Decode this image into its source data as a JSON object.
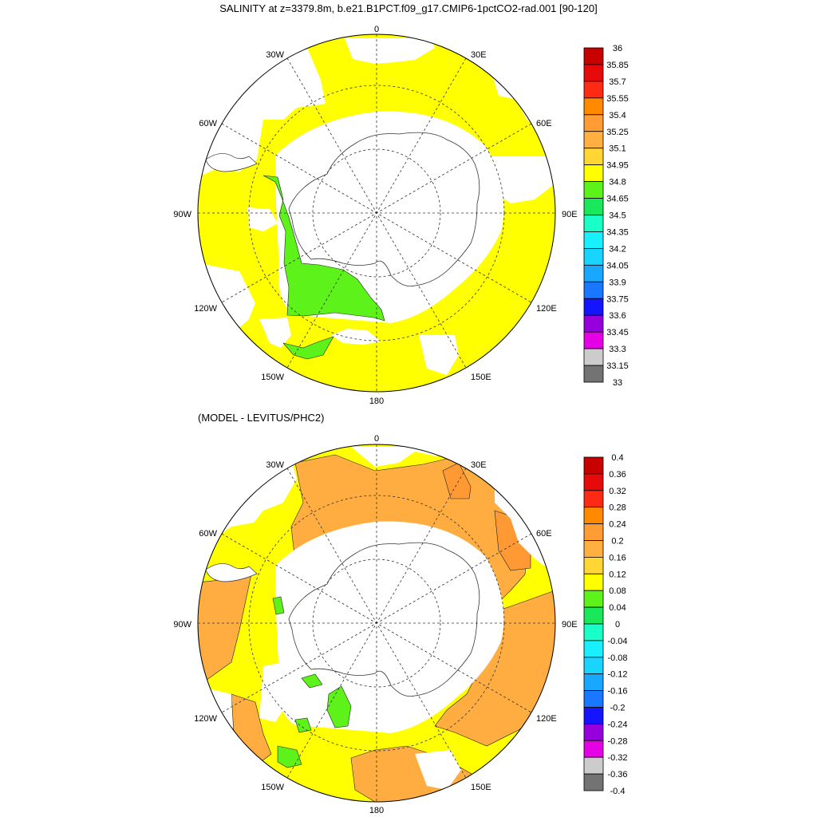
{
  "title": "SALINITY at z=3379.8m, b.e21.B1PCT.f09_g17.CMIP6-1pctCO2-rad.001 [90-120]",
  "subtitle": "(MODEL - LEVITUS/PHC2)",
  "longitude_labels": {
    "top": "0",
    "bottom": "180",
    "left": "90W",
    "right": "90E",
    "upper_left_1": "30W",
    "upper_left_2": "60W",
    "upper_right_1": "30E",
    "upper_right_2": "60E",
    "lower_left_1": "120W",
    "lower_left_2": "150W",
    "lower_right_1": "120E",
    "lower_right_2": "150E"
  },
  "colors": {
    "yellow": "#ffff00",
    "green": "#5cf21a",
    "gold": "#ffd633",
    "light_orange": "#ffad40",
    "orange": "#ff9933",
    "dark_orange": "#f58a1c",
    "land_line": "#333333"
  },
  "top_colorbar": {
    "labels": [
      "36",
      "35.85",
      "35.7",
      "35.55",
      "35.4",
      "35.25",
      "35.1",
      "34.95",
      "34.8",
      "34.65",
      "34.5",
      "34.35",
      "34.2",
      "34.05",
      "33.9",
      "33.75",
      "33.6",
      "33.45",
      "33.3",
      "33.15",
      "33"
    ],
    "colors": [
      "#c80000",
      "#e60a0a",
      "#ff2a14",
      "#ff8a00",
      "#ff9c33",
      "#ffb040",
      "#ffd633",
      "#ffff00",
      "#5cf21a",
      "#18e85a",
      "#19ffc8",
      "#19f0ff",
      "#19d4ff",
      "#19a8ff",
      "#1978ff",
      "#1414ff",
      "#9600dc",
      "#e600e6",
      "#cccccc",
      "#737373"
    ]
  },
  "bottom_colorbar": {
    "labels": [
      "0.4",
      "0.36",
      "0.32",
      "0.28",
      "0.24",
      "0.2",
      "0.16",
      "0.12",
      "0.08",
      "0.04",
      "0",
      "-0.04",
      "-0.08",
      "-0.12",
      "-0.16",
      "-0.2",
      "-0.24",
      "-0.28",
      "-0.32",
      "-0.36",
      "-0.4"
    ],
    "colors": [
      "#c80000",
      "#e60a0a",
      "#ff2a14",
      "#ff8a00",
      "#ff9c33",
      "#ffb040",
      "#ffd633",
      "#ffff00",
      "#5cf21a",
      "#18e85a",
      "#19ffc8",
      "#19f0ff",
      "#19d4ff",
      "#19a8ff",
      "#1978ff",
      "#1414ff",
      "#9600dc",
      "#e600e6",
      "#cccccc",
      "#737373"
    ]
  }
}
